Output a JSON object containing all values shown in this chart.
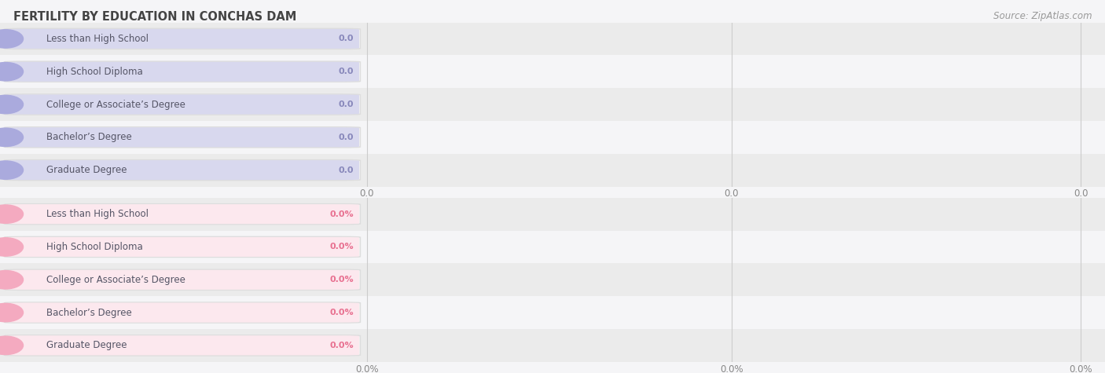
{
  "title": "FERTILITY BY EDUCATION IN CONCHAS DAM",
  "source": "Source: ZipAtlas.com",
  "categories": [
    "Less than High School",
    "High School Diploma",
    "College or Associate’s Degree",
    "Bachelor’s Degree",
    "Graduate Degree"
  ],
  "top_values": [
    0.0,
    0.0,
    0.0,
    0.0,
    0.0
  ],
  "bottom_values": [
    0.0,
    0.0,
    0.0,
    0.0,
    0.0
  ],
  "top_pill_bg": "#d8d8ee",
  "top_pill_fill": "#aaaadd",
  "top_dot_color": "#8888cc",
  "top_value_color": "#8888bb",
  "bottom_pill_bg": "#fce8ee",
  "bottom_pill_fill": "#f4aac0",
  "bottom_dot_color": "#e8709090",
  "bottom_value_color": "#e87090",
  "label_color": "#555566",
  "bg_color": "#f5f5f7",
  "row_even_bg": "#ebebeb",
  "row_odd_bg": "#f5f5f7",
  "grid_color": "#cccccc",
  "tick_label_color": "#888888",
  "title_color": "#444444",
  "source_color": "#999999",
  "white": "#ffffff"
}
